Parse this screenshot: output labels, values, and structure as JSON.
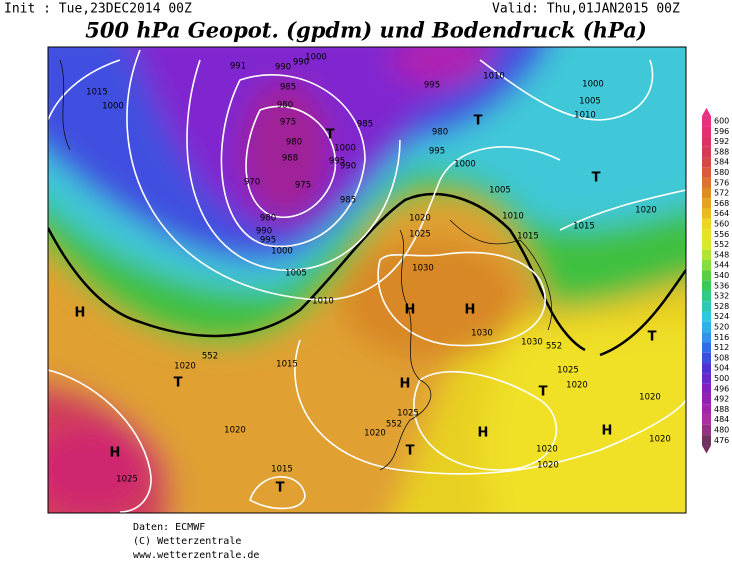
{
  "header": {
    "init": "Init : Tue,23DEC2014 00Z",
    "valid": "Valid: Thu,01JAN2015 00Z",
    "title": "500 hPa Geopot. (gpdm) und Bodendruck (hPa)"
  },
  "map": {
    "pressure_labels": [
      "1015",
      "1000",
      "991",
      "990",
      "990",
      "1000",
      "985",
      "980",
      "975",
      "985",
      "980",
      "988",
      "1000",
      "995",
      "990",
      "970",
      "975",
      "980",
      "985",
      "990",
      "995",
      "1000",
      "1005",
      "1010",
      "995",
      "1010",
      "1000",
      "1005",
      "1010",
      "980",
      "995",
      "1000",
      "1005",
      "1010",
      "1020",
      "1025",
      "1015",
      "1015",
      "1020",
      "1030",
      "1030",
      "1030",
      "1025",
      "1020",
      "1020",
      "1020",
      "1020",
      "1020",
      "1015",
      "1020",
      "1025",
      "1020",
      "1015",
      "1025",
      "1020"
    ],
    "geopotential_labels": [
      "552",
      "552",
      "552"
    ],
    "pressure_systems": [
      "T",
      "T",
      "T",
      "T",
      "T",
      "T",
      "T",
      "T",
      "H",
      "H",
      "H",
      "H",
      "H",
      "H",
      "H"
    ]
  },
  "colorbar": {
    "levels": [
      600,
      596,
      592,
      588,
      584,
      580,
      576,
      572,
      568,
      564,
      560,
      556,
      552,
      548,
      544,
      540,
      536,
      532,
      528,
      524,
      520,
      516,
      512,
      508,
      504,
      500,
      496,
      492,
      488,
      484,
      480,
      476
    ]
  },
  "footer": [
    "Daten: ECMWF",
    "(C) Wetterzentrale",
    "www.wetterzentrale.de"
  ]
}
